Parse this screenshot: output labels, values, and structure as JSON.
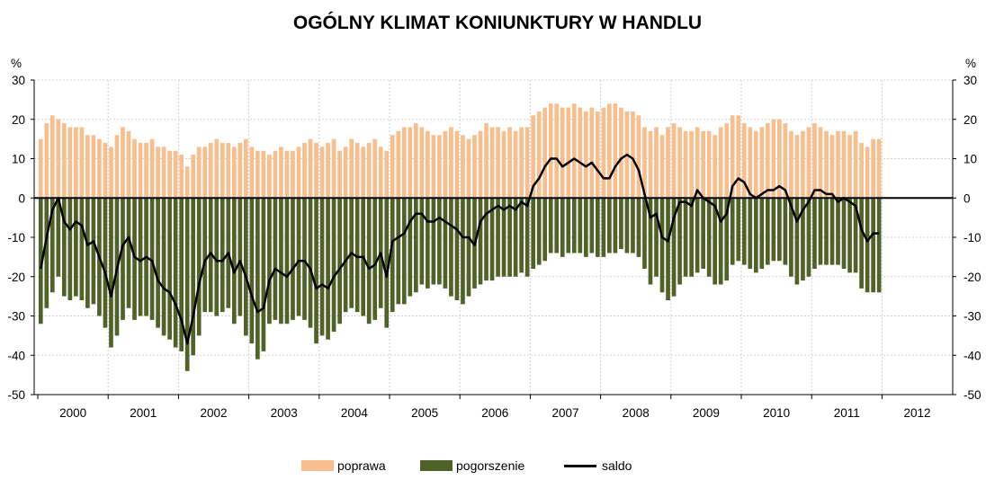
{
  "title": "OGÓLNY KLIMAT KONIUNKTURY W HANDLU",
  "chart_data": {
    "type": "bar",
    "title": "OGÓLNY KLIMAT KONIUNKTURY W HANDLU",
    "ylabel_left": "%",
    "ylabel_right": "%",
    "ylim": [
      -50,
      30
    ],
    "yticks": [
      30,
      20,
      10,
      0,
      -10,
      -20,
      -30,
      -40,
      -50
    ],
    "grid": true,
    "legend_position": "bottom",
    "colors": {
      "poprawa": "#F7BE8E",
      "pogorszenie": "#4F6228",
      "saldo": "#000000"
    },
    "year_labels": [
      "2000",
      "2001",
      "2002",
      "2003",
      "2004",
      "2005",
      "2006",
      "2007",
      "2008",
      "2009",
      "2010",
      "2011",
      "2012"
    ],
    "x_start": "2000-01",
    "x_end": "2011-12",
    "series": [
      {
        "name": "poprawa",
        "kind": "bar",
        "values": [
          15,
          19,
          21,
          20,
          19,
          18,
          18,
          18,
          16,
          16,
          15,
          14,
          13,
          16,
          18,
          17,
          15,
          14,
          14,
          15,
          13,
          13,
          12,
          12,
          11,
          8,
          11,
          13,
          13,
          14,
          15,
          14,
          14,
          13,
          14,
          15,
          13,
          12,
          12,
          11,
          12,
          13,
          12,
          12,
          13,
          14,
          15,
          14,
          13,
          14,
          15,
          12,
          13,
          15,
          14,
          13,
          14,
          15,
          13,
          12,
          16,
          17,
          18,
          18,
          19,
          18,
          17,
          16,
          16,
          17,
          18,
          17,
          16,
          15,
          16,
          17,
          19,
          18,
          18,
          17,
          18,
          17,
          18,
          18,
          21,
          22,
          23,
          24,
          24,
          23,
          23,
          24,
          23,
          22,
          23,
          22,
          23,
          24,
          24,
          23,
          22,
          22,
          21,
          18,
          17,
          18,
          16,
          18,
          19,
          18,
          17,
          17,
          18,
          17,
          17,
          16,
          18,
          19,
          21,
          21,
          19,
          18,
          17,
          18,
          19,
          20,
          20,
          19,
          17,
          16,
          17,
          18,
          19,
          18,
          17,
          16,
          17,
          17,
          16,
          17,
          14,
          13,
          15,
          15
        ]
      },
      {
        "name": "pogorszenie",
        "kind": "bar",
        "values": [
          -32,
          -28,
          -24,
          -20,
          -25,
          -26,
          -25,
          -26,
          -28,
          -27,
          -30,
          -33,
          -38,
          -35,
          -31,
          -28,
          -31,
          -30,
          -30,
          -31,
          -33,
          -35,
          -36,
          -38,
          -39,
          -44,
          -40,
          -35,
          -29,
          -29,
          -30,
          -29,
          -28,
          -32,
          -30,
          -35,
          -37,
          -41,
          -39,
          -32,
          -31,
          -32,
          -32,
          -31,
          -30,
          -31,
          -33,
          -37,
          -35,
          -36,
          -34,
          -32,
          -29,
          -28,
          -29,
          -30,
          -32,
          -31,
          -28,
          -33,
          -29,
          -27,
          -27,
          -25,
          -24,
          -22,
          -23,
          -22,
          -22,
          -23,
          -25,
          -26,
          -27,
          -25,
          -23,
          -22,
          -21,
          -21,
          -20,
          -20,
          -20,
          -20,
          -19,
          -20,
          -18,
          -17,
          -16,
          -14,
          -14,
          -15,
          -14,
          -14,
          -14,
          -15,
          -14,
          -15,
          -15,
          -14,
          -14,
          -13,
          -14,
          -14,
          -15,
          -18,
          -22,
          -20,
          -24,
          -26,
          -25,
          -22,
          -20,
          -20,
          -19,
          -18,
          -20,
          -22,
          -22,
          -21,
          -17,
          -16,
          -17,
          -18,
          -19,
          -18,
          -17,
          -16,
          -16,
          -17,
          -20,
          -22,
          -21,
          -20,
          -18,
          -17,
          -17,
          -17,
          -17,
          -18,
          -19,
          -19,
          -23,
          -24,
          -24,
          -24
        ]
      },
      {
        "name": "saldo",
        "kind": "line",
        "values": [
          -18,
          -10,
          -3,
          0,
          -6,
          -8,
          -6,
          -7,
          -12,
          -11,
          -15,
          -19,
          -25,
          -18,
          -12,
          -10,
          -15,
          -16,
          -15,
          -16,
          -21,
          -23,
          -24,
          -27,
          -31,
          -37,
          -30,
          -22,
          -16,
          -14,
          -16,
          -16,
          -14,
          -19,
          -16,
          -20,
          -25,
          -29,
          -28,
          -21,
          -18,
          -19,
          -20,
          -18,
          -16,
          -16,
          -18,
          -23,
          -22,
          -23,
          -20,
          -18,
          -16,
          -14,
          -15,
          -15,
          -18,
          -17,
          -14,
          -20,
          -11,
          -10,
          -9,
          -6,
          -4,
          -4,
          -6,
          -6,
          -5,
          -6,
          -7,
          -8,
          -10,
          -10,
          -12,
          -6,
          -4,
          -3,
          -2,
          -3,
          -2,
          -3,
          -1,
          -2,
          3,
          5,
          8,
          10,
          10,
          8,
          9,
          10,
          9,
          8,
          9,
          7,
          5,
          5,
          8,
          10,
          11,
          10,
          7,
          1,
          -5,
          -4,
          -10,
          -11,
          -5,
          -1,
          -1,
          -2,
          2,
          0,
          -1,
          -2,
          -6,
          -4,
          3,
          5,
          4,
          1,
          0,
          1,
          2,
          2,
          3,
          2,
          -2,
          -6,
          -3,
          -1,
          2,
          2,
          1,
          1,
          -1,
          0,
          -1,
          -2,
          -8,
          -11,
          -9,
          -9
        ]
      }
    ]
  }
}
